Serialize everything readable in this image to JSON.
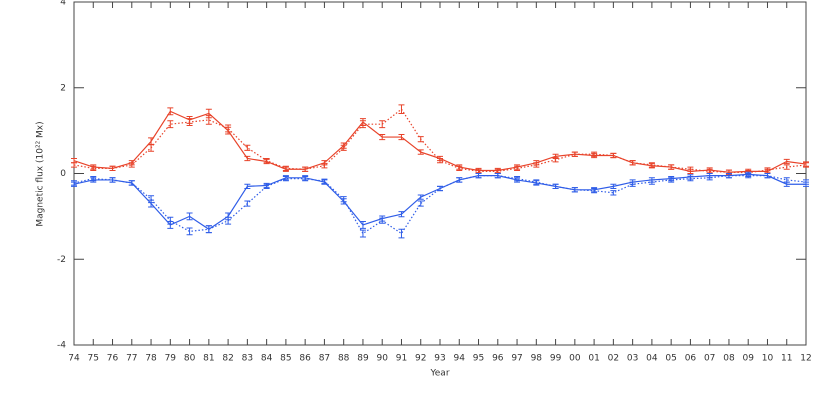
{
  "chart_data": {
    "type": "line",
    "xlabel": "Year",
    "ylabel": "Magnetic flux (10²² Mx)",
    "categories": [
      "74",
      "75",
      "76",
      "77",
      "78",
      "79",
      "80",
      "81",
      "82",
      "83",
      "84",
      "85",
      "86",
      "87",
      "88",
      "89",
      "90",
      "91",
      "92",
      "93",
      "94",
      "95",
      "96",
      "97",
      "98",
      "99",
      "00",
      "01",
      "02",
      "03",
      "04",
      "05",
      "06",
      "07",
      "08",
      "09",
      "10",
      "11",
      "12"
    ],
    "ylim": [
      -4,
      4
    ],
    "yticks": [
      -4,
      -2,
      0,
      2,
      4
    ],
    "series": [
      {
        "color": "#e8432a",
        "dash": "solid",
        "values": [
          0.3,
          0.15,
          0.12,
          0.25,
          0.75,
          1.45,
          1.25,
          1.4,
          1.0,
          0.35,
          0.28,
          0.1,
          0.1,
          0.25,
          0.65,
          1.2,
          0.85,
          0.85,
          0.5,
          0.35,
          0.15,
          0.07,
          0.07,
          0.15,
          0.25,
          0.4,
          0.45,
          0.42,
          0.42,
          0.25,
          0.18,
          0.15,
          0.05,
          0.08,
          0.03,
          0.05,
          0.05,
          0.28,
          0.22
        ],
        "errors": [
          0.05,
          0.05,
          0.05,
          0.05,
          0.08,
          0.08,
          0.08,
          0.1,
          0.08,
          0.05,
          0.05,
          0.05,
          0.05,
          0.05,
          0.06,
          0.08,
          0.06,
          0.06,
          0.05,
          0.05,
          0.05,
          0.05,
          0.05,
          0.05,
          0.05,
          0.05,
          0.05,
          0.05,
          0.05,
          0.05,
          0.05,
          0.05,
          0.05,
          0.05,
          0.05,
          0.05,
          0.05,
          0.05,
          0.05
        ]
      },
      {
        "color": "#e8432a",
        "dash": "dotted",
        "values": [
          0.2,
          0.12,
          0.12,
          0.2,
          0.6,
          1.15,
          1.2,
          1.25,
          1.05,
          0.6,
          0.3,
          0.12,
          0.1,
          0.18,
          0.6,
          1.15,
          1.15,
          1.5,
          0.8,
          0.3,
          0.12,
          0.05,
          0.05,
          0.12,
          0.2,
          0.32,
          0.45,
          0.45,
          0.42,
          0.25,
          0.2,
          0.15,
          0.1,
          0.05,
          0.03,
          0.02,
          0.08,
          0.15,
          0.2
        ],
        "errors": [
          0.05,
          0.05,
          0.05,
          0.05,
          0.08,
          0.08,
          0.08,
          0.1,
          0.08,
          0.06,
          0.05,
          0.05,
          0.05,
          0.05,
          0.06,
          0.08,
          0.08,
          0.1,
          0.06,
          0.05,
          0.05,
          0.05,
          0.05,
          0.05,
          0.05,
          0.05,
          0.05,
          0.05,
          0.05,
          0.05,
          0.05,
          0.05,
          0.05,
          0.05,
          0.05,
          0.05,
          0.05,
          0.05,
          0.05
        ]
      },
      {
        "color": "#2f5de8",
        "dash": "solid",
        "values": [
          -0.25,
          -0.15,
          -0.15,
          -0.22,
          -0.7,
          -1.2,
          -1.0,
          -1.3,
          -1.0,
          -0.3,
          -0.28,
          -0.1,
          -0.1,
          -0.2,
          -0.65,
          -1.2,
          -1.05,
          -0.95,
          -0.55,
          -0.35,
          -0.15,
          -0.05,
          -0.05,
          -0.15,
          -0.22,
          -0.3,
          -0.38,
          -0.38,
          -0.3,
          -0.2,
          -0.15,
          -0.12,
          -0.08,
          -0.05,
          -0.05,
          -0.02,
          -0.05,
          -0.25,
          -0.25
        ],
        "errors": [
          0.05,
          0.05,
          0.05,
          0.05,
          0.08,
          0.08,
          0.08,
          0.08,
          0.08,
          0.05,
          0.05,
          0.05,
          0.05,
          0.05,
          0.06,
          0.08,
          0.06,
          0.06,
          0.05,
          0.05,
          0.05,
          0.05,
          0.05,
          0.05,
          0.05,
          0.05,
          0.05,
          0.05,
          0.05,
          0.05,
          0.05,
          0.05,
          0.05,
          0.05,
          0.05,
          0.05,
          0.05,
          0.05,
          0.05
        ]
      },
      {
        "color": "#2f5de8",
        "dash": "dotted",
        "values": [
          -0.22,
          -0.12,
          -0.15,
          -0.22,
          -0.6,
          -1.1,
          -1.35,
          -1.3,
          -1.1,
          -0.7,
          -0.3,
          -0.12,
          -0.12,
          -0.18,
          -0.6,
          -1.4,
          -1.1,
          -1.4,
          -0.7,
          -0.35,
          -0.15,
          -0.05,
          -0.05,
          -0.12,
          -0.2,
          -0.3,
          -0.38,
          -0.4,
          -0.45,
          -0.25,
          -0.2,
          -0.15,
          -0.12,
          -0.1,
          -0.05,
          -0.05,
          -0.05,
          -0.15,
          -0.2
        ],
        "errors": [
          0.05,
          0.05,
          0.05,
          0.05,
          0.08,
          0.08,
          0.08,
          0.08,
          0.08,
          0.06,
          0.05,
          0.05,
          0.05,
          0.05,
          0.06,
          0.08,
          0.06,
          0.1,
          0.06,
          0.05,
          0.05,
          0.05,
          0.05,
          0.05,
          0.05,
          0.05,
          0.05,
          0.05,
          0.05,
          0.05,
          0.05,
          0.05,
          0.05,
          0.05,
          0.05,
          0.05,
          0.05,
          0.05,
          0.05
        ]
      }
    ]
  }
}
